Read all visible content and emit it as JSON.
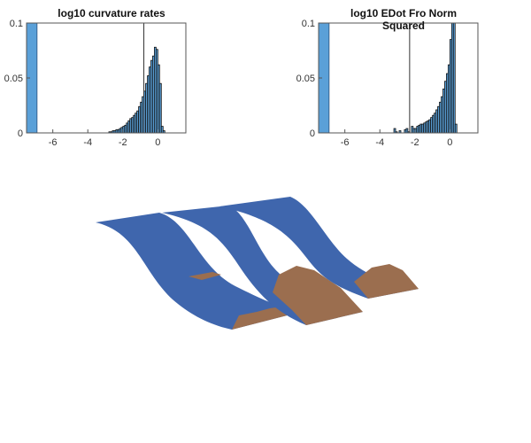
{
  "chart_data": [
    {
      "type": "bar",
      "title": "log10 curvature rates",
      "xlim": [
        -7.5,
        1.6
      ],
      "ylim": [
        0,
        0.1
      ],
      "xticks": [
        "-6",
        "-4",
        "-2",
        "0"
      ],
      "yticks": [
        "0",
        "0.05",
        "0.1"
      ],
      "tall_bin": {
        "x_from": -7.5,
        "x_to": -6.9,
        "value": 0.1,
        "color": "#5aa0d8"
      },
      "threshold_line_x": -0.8,
      "bin_width": 0.1,
      "bins_x": [
        -2.8,
        -2.7,
        -2.6,
        -2.5,
        -2.4,
        -2.3,
        -2.2,
        -2.1,
        -2.0,
        -1.9,
        -1.8,
        -1.7,
        -1.6,
        -1.5,
        -1.4,
        -1.3,
        -1.2,
        -1.1,
        -1.0,
        -0.9,
        -0.8,
        -0.7,
        -0.6,
        -0.5,
        -0.4,
        -0.3,
        -0.2,
        -0.1,
        0.0,
        0.1,
        0.2,
        0.3
      ],
      "values": [
        0.001,
        0.001,
        0.002,
        0.002,
        0.003,
        0.003,
        0.004,
        0.005,
        0.006,
        0.007,
        0.009,
        0.011,
        0.013,
        0.014,
        0.016,
        0.018,
        0.02,
        0.024,
        0.028,
        0.033,
        0.038,
        0.045,
        0.052,
        0.06,
        0.066,
        0.07,
        0.078,
        0.076,
        0.062,
        0.045,
        0.006,
        0.002
      ]
    },
    {
      "type": "bar",
      "title": "log10 EDot Fro Norm Squared",
      "xlim": [
        -7.5,
        1.6
      ],
      "ylim": [
        0,
        0.1
      ],
      "xticks": [
        "-6",
        "-4",
        "-2",
        "0"
      ],
      "yticks": [
        "0",
        "0.05",
        "0.1"
      ],
      "tall_bin": {
        "x_from": -7.5,
        "x_to": -6.9,
        "value": 0.1,
        "color": "#5aa0d8"
      },
      "threshold_line_x": -2.3,
      "bin_width": 0.1,
      "bins_x": [
        -3.2,
        -3.1,
        -2.9,
        -2.6,
        -2.5,
        -2.4,
        -2.2,
        -2.1,
        -2.0,
        -1.9,
        -1.8,
        -1.7,
        -1.6,
        -1.5,
        -1.4,
        -1.3,
        -1.2,
        -1.1,
        -1.0,
        -0.9,
        -0.8,
        -0.7,
        -0.6,
        -0.5,
        -0.4,
        -0.3,
        -0.2,
        -0.1,
        0.0,
        0.1,
        0.2,
        0.3
      ],
      "values": [
        0.004,
        0.001,
        0.002,
        0.003,
        0.004,
        0.001,
        0.006,
        0.004,
        0.004,
        0.006,
        0.007,
        0.008,
        0.008,
        0.009,
        0.01,
        0.011,
        0.012,
        0.014,
        0.016,
        0.018,
        0.021,
        0.024,
        0.028,
        0.033,
        0.04,
        0.047,
        0.054,
        0.062,
        0.085,
        0.1,
        0.1,
        0.008
      ]
    }
  ],
  "surface_colors": {
    "surface": "#3f66ad",
    "patch": "#9b6e4f"
  }
}
